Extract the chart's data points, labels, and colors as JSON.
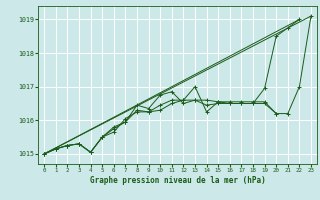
{
  "xlabel": "Graphe pression niveau de la mer (hPa)",
  "background_color": "#cce8e8",
  "grid_color": "#ffffff",
  "line_color": "#1a5c1a",
  "xlim": [
    -0.5,
    23.5
  ],
  "ylim": [
    1014.7,
    1019.4
  ],
  "yticks": [
    1015,
    1016,
    1017,
    1018,
    1019
  ],
  "xticks": [
    0,
    1,
    2,
    3,
    4,
    5,
    6,
    7,
    8,
    9,
    10,
    11,
    12,
    13,
    14,
    15,
    16,
    17,
    18,
    19,
    20,
    21,
    22,
    23
  ],
  "series": [
    {
      "x": [
        0,
        1,
        2,
        3,
        4,
        5,
        6,
        7,
        8,
        9,
        10,
        11,
        12,
        13,
        14,
        15,
        16,
        17,
        18,
        19,
        20,
        21,
        22,
        23
      ],
      "y": [
        1015.0,
        1015.15,
        1015.25,
        1015.3,
        1015.05,
        1015.5,
        1015.75,
        1015.95,
        1016.3,
        1016.25,
        1016.3,
        1016.5,
        1016.6,
        1016.6,
        1016.6,
        1016.55,
        1016.5,
        1016.5,
        1016.5,
        1016.5,
        1016.2,
        1016.2,
        1017.0,
        1019.1
      ]
    },
    {
      "x": [
        0,
        1,
        2,
        3,
        4,
        5,
        6,
        7,
        8,
        9,
        10,
        11,
        12,
        13,
        14,
        15,
        16,
        17,
        18,
        19,
        20,
        21,
        22
      ],
      "y": [
        1015.0,
        1015.15,
        1015.25,
        1015.3,
        1015.05,
        1015.5,
        1015.8,
        1015.95,
        1016.45,
        1016.35,
        1016.75,
        1016.85,
        1016.5,
        1016.6,
        1016.45,
        1016.5,
        1016.5,
        1016.5,
        1016.5,
        1016.95,
        1018.5,
        1018.75,
        1019.0
      ]
    },
    {
      "x": [
        0,
        1,
        2,
        3,
        4,
        5,
        6,
        7,
        8,
        9,
        10,
        11,
        12,
        13,
        14,
        15,
        16,
        17,
        18,
        19,
        20
      ],
      "y": [
        1015.0,
        1015.15,
        1015.25,
        1015.3,
        1015.05,
        1015.5,
        1015.65,
        1016.05,
        1016.25,
        1016.25,
        1016.45,
        1016.6,
        1016.6,
        1017.0,
        1016.25,
        1016.55,
        1016.55,
        1016.55,
        1016.55,
        1016.55,
        1016.2
      ]
    },
    {
      "x": [
        0,
        23
      ],
      "y": [
        1015.0,
        1019.1
      ]
    },
    {
      "x": [
        0,
        22
      ],
      "y": [
        1015.0,
        1019.0
      ]
    }
  ]
}
